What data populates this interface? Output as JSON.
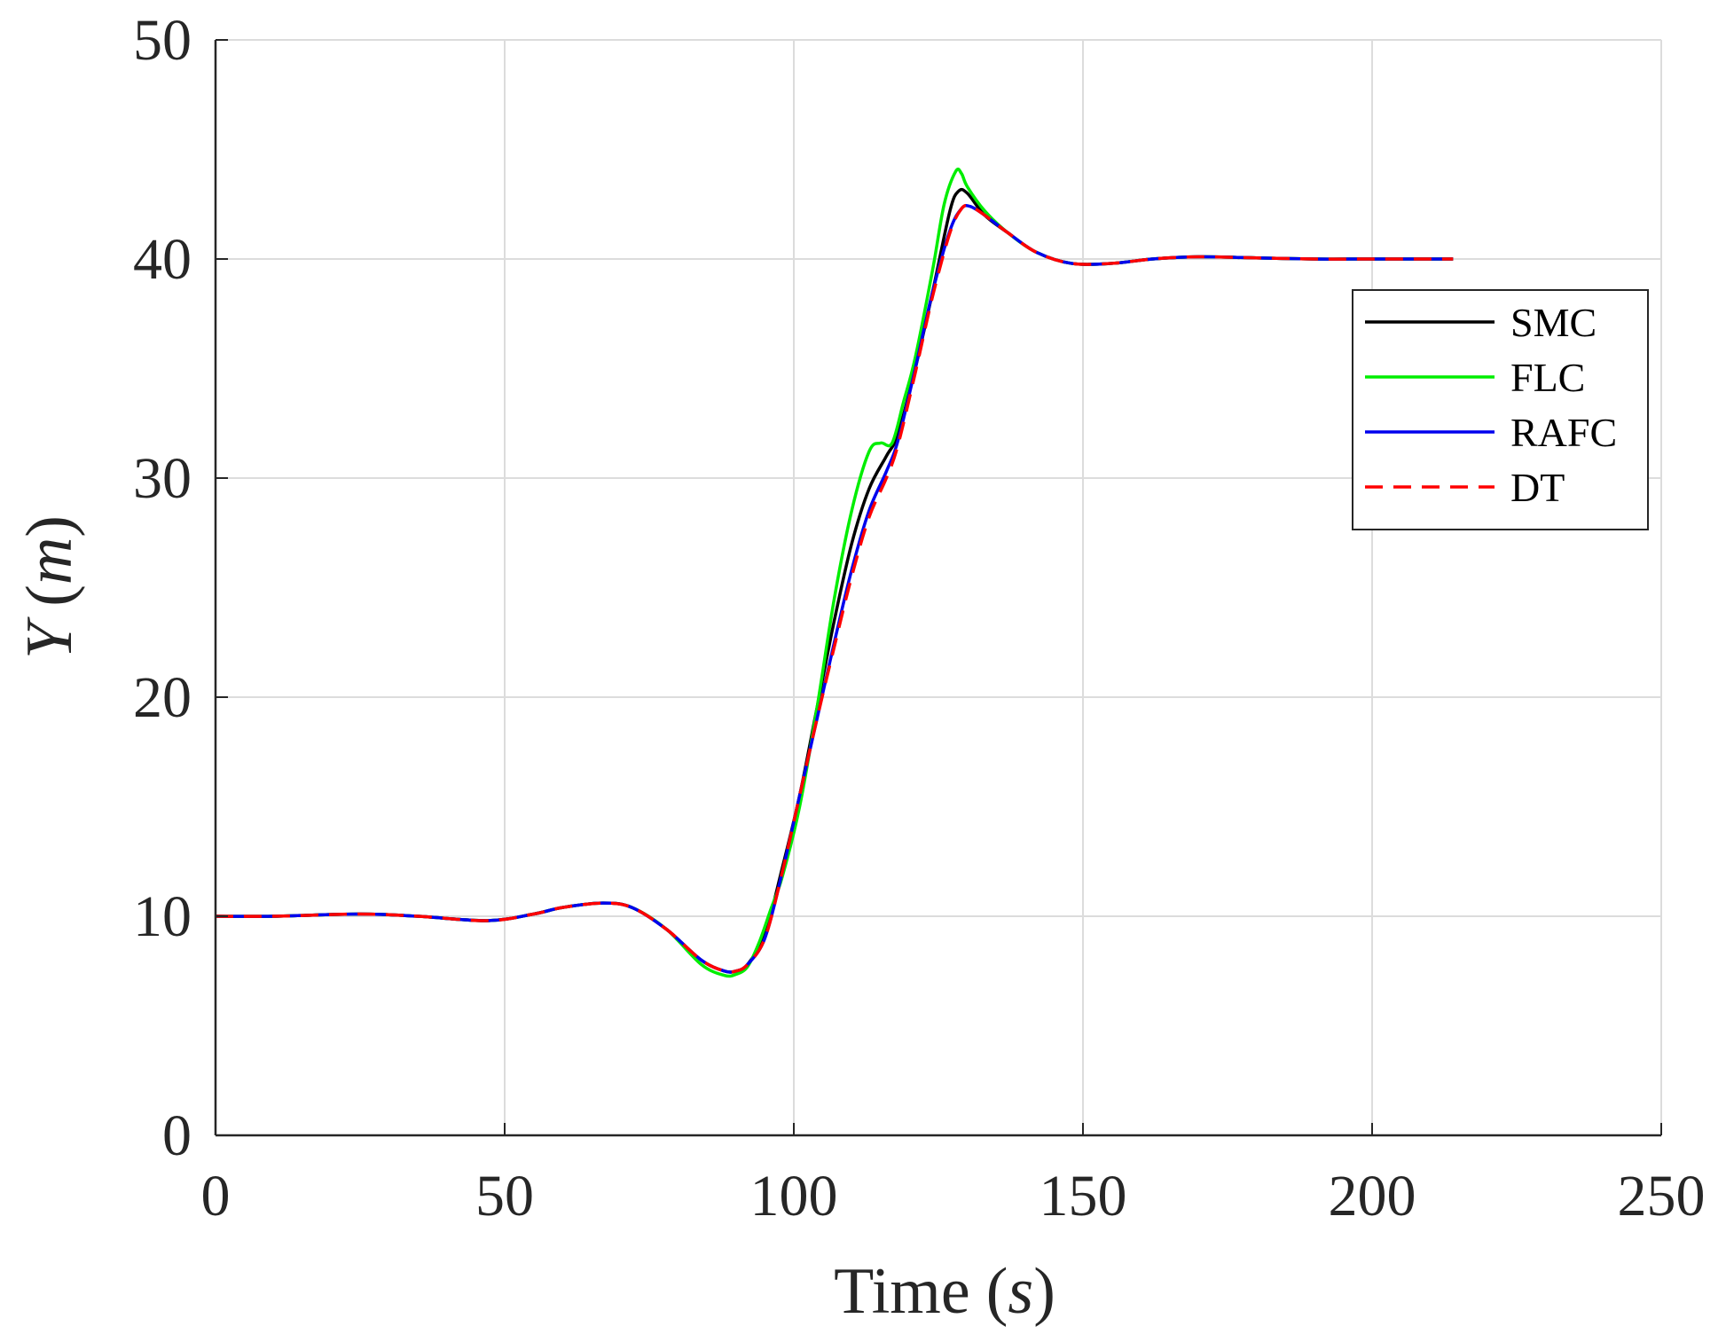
{
  "chart_data": {
    "type": "line",
    "xlabel": {
      "text": "Time",
      "unit": "s"
    },
    "ylabel": {
      "text": "Y",
      "unit": "m"
    },
    "xlim": [
      0,
      250
    ],
    "ylim": [
      0,
      50
    ],
    "xticks": [
      "0",
      "50",
      "100",
      "150",
      "200",
      "250"
    ],
    "yticks": [
      "0",
      "10",
      "20",
      "30",
      "40",
      "50"
    ],
    "grid": true,
    "legend_position": "right",
    "series": [
      {
        "name": "SMC",
        "color": "#000000",
        "dash": "solid",
        "x": [
          0,
          10,
          25,
          35,
          47,
          55,
          60,
          67,
          72,
          78,
          84,
          88,
          90,
          92,
          95,
          98,
          101,
          104,
          107,
          110,
          113,
          116,
          118,
          121,
          124,
          127,
          128.5,
          130,
          133,
          137,
          142,
          148,
          155,
          162,
          170,
          180,
          190,
          200,
          214
        ],
        "y": [
          10,
          10,
          10.1,
          10,
          9.8,
          10.1,
          10.4,
          10.6,
          10.4,
          9.4,
          8.0,
          7.5,
          7.5,
          7.8,
          9.2,
          12.2,
          15.5,
          19.5,
          23.5,
          27.0,
          29.5,
          31.0,
          32.0,
          35.0,
          38.5,
          42.2,
          43.1,
          43.0,
          42.0,
          41.2,
          40.3,
          39.8,
          39.8,
          40.0,
          40.1,
          40.05,
          40,
          40,
          40
        ]
      },
      {
        "name": "FLC",
        "color": "#00ee00",
        "dash": "solid",
        "x": [
          0,
          10,
          25,
          35,
          47,
          55,
          60,
          67,
          72,
          78,
          84,
          88,
          90,
          92,
          94,
          96,
          98,
          101,
          104,
          107,
          110,
          113,
          115,
          117,
          119,
          121,
          124,
          126,
          128,
          129,
          130,
          133,
          137,
          142,
          148,
          155,
          162,
          170,
          180,
          190,
          200,
          214
        ],
        "y": [
          10,
          10,
          10.1,
          10,
          9.8,
          10.1,
          10.4,
          10.6,
          10.4,
          9.4,
          7.8,
          7.3,
          7.35,
          7.7,
          8.8,
          10.3,
          11.8,
          15.0,
          19.5,
          24.5,
          28.5,
          31.2,
          31.6,
          31.6,
          33.5,
          35.5,
          39.5,
          42.5,
          44.0,
          43.9,
          43.3,
          42.2,
          41.2,
          40.3,
          39.8,
          39.8,
          40.0,
          40.1,
          40.05,
          40,
          40,
          40
        ]
      },
      {
        "name": "RAFC",
        "color": "#0000ee",
        "dash": "solid",
        "x": [
          0,
          10,
          25,
          35,
          47,
          55,
          60,
          67,
          72,
          78,
          84,
          88,
          90,
          92,
          95,
          98,
          101,
          104,
          107,
          110,
          113,
          116,
          118,
          121,
          124,
          127,
          129,
          130.5,
          133,
          137,
          142,
          148,
          155,
          162,
          170,
          180,
          190,
          200,
          214
        ],
        "y": [
          10,
          10,
          10.1,
          10,
          9.8,
          10.1,
          10.4,
          10.6,
          10.4,
          9.4,
          8.0,
          7.5,
          7.5,
          7.8,
          9.0,
          12.0,
          15.5,
          19.0,
          22.5,
          25.8,
          28.5,
          30.3,
          31.7,
          35.0,
          38.5,
          41.3,
          42.3,
          42.4,
          42.0,
          41.2,
          40.3,
          39.8,
          39.8,
          40.0,
          40.1,
          40.05,
          40,
          40,
          40
        ]
      },
      {
        "name": "DT",
        "color": "#ff0000",
        "dash": "dashed",
        "x": [
          0,
          10,
          25,
          35,
          47,
          55,
          60,
          67,
          72,
          78,
          84,
          88,
          90,
          92,
          95,
          98,
          101,
          104,
          107,
          110,
          113,
          116,
          118,
          121,
          124,
          127,
          129,
          130.5,
          133,
          137,
          142,
          148,
          155,
          162,
          170,
          180,
          190,
          200,
          214
        ],
        "y": [
          10,
          10,
          10.1,
          10,
          9.8,
          10.1,
          10.4,
          10.6,
          10.4,
          9.4,
          8.0,
          7.5,
          7.5,
          7.8,
          9.0,
          12.0,
          15.5,
          19.0,
          22.3,
          25.5,
          28.2,
          30.0,
          31.5,
          34.8,
          38.3,
          41.2,
          42.3,
          42.4,
          42.0,
          41.2,
          40.3,
          39.8,
          39.8,
          40.0,
          40.1,
          40.05,
          40,
          40,
          40
        ]
      }
    ]
  }
}
